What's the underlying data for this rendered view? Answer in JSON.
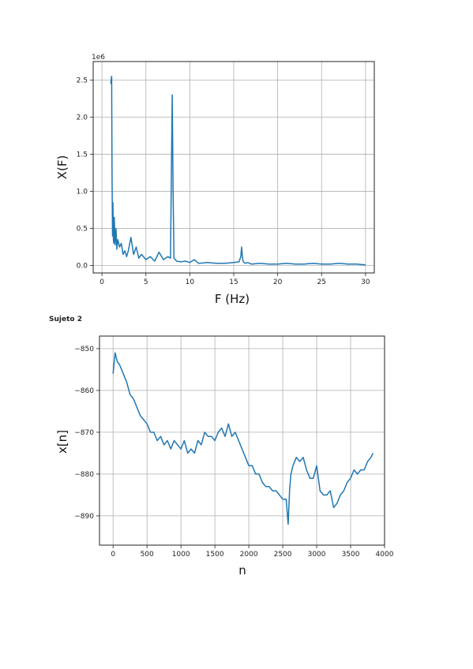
{
  "page": {
    "label": "Sujeto 2"
  },
  "chart_data": [
    {
      "type": "line",
      "title": "",
      "xlabel": "F (Hz)",
      "ylabel": "X(F)",
      "offset_label": "1e6",
      "xlim": [
        -1,
        31
      ],
      "ylim": [
        -0.1,
        2.75
      ],
      "xticks": [
        0,
        5,
        10,
        15,
        20,
        25,
        30
      ],
      "yticks": [
        0.0,
        0.5,
        1.0,
        1.5,
        2.0,
        2.5
      ],
      "xtick_labels": [
        "0",
        "5",
        "10",
        "15",
        "20",
        "25",
        "30"
      ],
      "ytick_labels": [
        "0.0",
        "0.5",
        "1.0",
        "1.5",
        "2.0",
        "2.5"
      ],
      "grid": true,
      "line_color": "#1f77b4",
      "series": [
        {
          "x": [
            1.0,
            1.05,
            1.1,
            1.15,
            1.2,
            1.25,
            1.3,
            1.35,
            1.4,
            1.5,
            1.6,
            1.7,
            1.8,
            1.9,
            2.0,
            2.2,
            2.4,
            2.6,
            2.8,
            3.0,
            3.3,
            3.6,
            3.9,
            4.2,
            4.5,
            5.0,
            5.5,
            6.0,
            6.5,
            7.0,
            7.5,
            7.8,
            7.9,
            8.0,
            8.1,
            8.2,
            8.5,
            9.0,
            9.5,
            10.0,
            10.5,
            11.0,
            12.0,
            13.0,
            14.0,
            15.0,
            15.6,
            15.8,
            15.9,
            16.0,
            16.1,
            16.3,
            16.6,
            17.0,
            18.0,
            19.0,
            20.0,
            21.0,
            22.0,
            23.0,
            24.0,
            25.0,
            26.0,
            27.0,
            28.0,
            29.0,
            30.0
          ],
          "y": [
            2.45,
            2.5,
            2.55,
            1.2,
            0.4,
            0.85,
            0.35,
            0.3,
            0.65,
            0.28,
            0.5,
            0.22,
            0.35,
            0.3,
            0.25,
            0.3,
            0.15,
            0.2,
            0.12,
            0.2,
            0.38,
            0.15,
            0.25,
            0.1,
            0.15,
            0.08,
            0.12,
            0.06,
            0.18,
            0.08,
            0.12,
            0.1,
            1.2,
            2.3,
            1.0,
            0.1,
            0.06,
            0.05,
            0.06,
            0.04,
            0.08,
            0.03,
            0.04,
            0.03,
            0.03,
            0.04,
            0.05,
            0.12,
            0.25,
            0.1,
            0.05,
            0.03,
            0.04,
            0.02,
            0.03,
            0.02,
            0.02,
            0.03,
            0.02,
            0.02,
            0.03,
            0.02,
            0.02,
            0.03,
            0.02,
            0.02,
            0.01
          ]
        }
      ]
    },
    {
      "type": "line",
      "title": "",
      "xlabel": "n",
      "ylabel": "x[n]",
      "xlim": [
        -200,
        4000
      ],
      "ylim": [
        -897,
        -847
      ],
      "xticks": [
        0,
        500,
        1000,
        1500,
        2000,
        2500,
        3000,
        3500,
        4000
      ],
      "yticks": [
        -850,
        -860,
        -870,
        -880,
        -890
      ],
      "xtick_labels": [
        "0",
        "500",
        "1000",
        "1500",
        "2000",
        "2500",
        "3000",
        "3500",
        "4000"
      ],
      "ytick_labels": [
        "−850",
        "−860",
        "−870",
        "−880",
        "−890"
      ],
      "grid": true,
      "line_color": "#1f77b4",
      "series": [
        {
          "x": [
            0,
            30,
            60,
            100,
            150,
            200,
            250,
            300,
            350,
            400,
            450,
            500,
            550,
            600,
            650,
            700,
            750,
            800,
            850,
            900,
            950,
            1000,
            1050,
            1100,
            1150,
            1200,
            1250,
            1300,
            1350,
            1400,
            1450,
            1500,
            1550,
            1600,
            1650,
            1700,
            1750,
            1800,
            1850,
            1900,
            1950,
            2000,
            2050,
            2100,
            2150,
            2200,
            2250,
            2300,
            2350,
            2400,
            2450,
            2500,
            2550,
            2580,
            2600,
            2620,
            2650,
            2700,
            2750,
            2800,
            2850,
            2900,
            2950,
            3000,
            3050,
            3100,
            3150,
            3200,
            3250,
            3300,
            3350,
            3400,
            3450,
            3500,
            3550,
            3600,
            3650,
            3700,
            3750,
            3800,
            3830
          ],
          "y": [
            -856,
            -851,
            -853,
            -854,
            -856,
            -858,
            -861,
            -862,
            -864,
            -866,
            -867,
            -868,
            -870,
            -870,
            -872,
            -871,
            -873,
            -872,
            -874,
            -872,
            -873,
            -874,
            -872,
            -875,
            -874,
            -875,
            -872,
            -873,
            -870,
            -871,
            -871,
            -872,
            -870,
            -869,
            -871,
            -868,
            -871,
            -870,
            -872,
            -874,
            -876,
            -878,
            -878,
            -880,
            -880,
            -882,
            -883,
            -883,
            -884,
            -884,
            -885,
            -886,
            -886,
            -892,
            -884,
            -880,
            -878,
            -876,
            -877,
            -876,
            -879,
            -881,
            -881,
            -878,
            -884,
            -885,
            -885,
            -884,
            -888,
            -887,
            -885,
            -884,
            -882,
            -881,
            -879,
            -880,
            -879,
            -879,
            -877,
            -876,
            -875
          ]
        }
      ]
    }
  ]
}
